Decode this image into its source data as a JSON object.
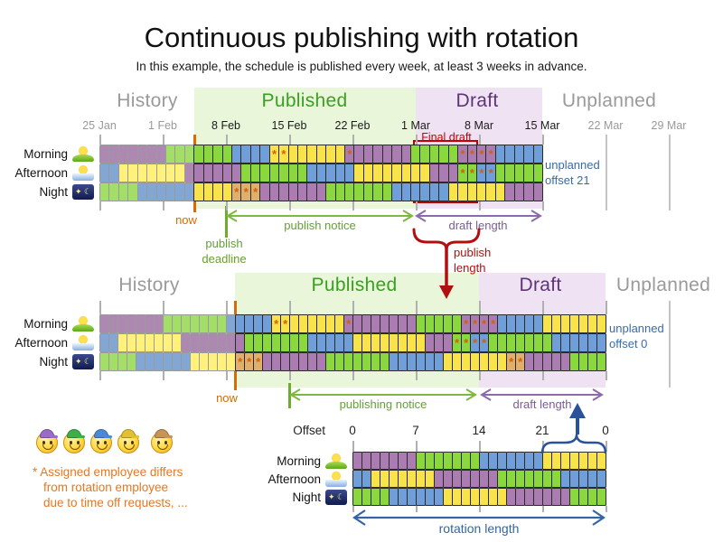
{
  "title": "Continuous publishing with rotation",
  "subtitle": "In this example, the schedule is published every week, at least 3 weeks in advance.",
  "colors": {
    "shifts": {
      "P": "#ab7cb2",
      "G": "#8ad83e",
      "B": "#6f9ed8",
      "Y": "#f8e34a",
      "T": "#e0af6b"
    },
    "published_bg": "#e9f6da",
    "draft_bg": "#efe2f2",
    "now_line": "#d96b00",
    "deadline_line": "#6cae2a",
    "final_draft_red": "#c00000",
    "annotation_blue": "#3a6ba8",
    "employee_caps": [
      "#9b6bc8",
      "#3fae49",
      "#4a8ad4",
      "#e3c030",
      "#c79455"
    ]
  },
  "charts": {
    "top": {
      "section_labels": [
        "History",
        "Published",
        "Draft",
        "Unplanned"
      ],
      "dates": [
        {
          "label": "25 Jan",
          "muted": true
        },
        {
          "label": "1 Feb",
          "muted": true
        },
        {
          "label": "8 Feb",
          "muted": false
        },
        {
          "label": "15 Feb",
          "muted": false
        },
        {
          "label": "22 Feb",
          "muted": false
        },
        {
          "label": "1 Mar",
          "muted": false
        },
        {
          "label": "8 Mar",
          "muted": false
        },
        {
          "label": "15 Mar",
          "muted": false
        },
        {
          "label": "22 Mar",
          "muted": true
        },
        {
          "label": "29 Mar",
          "muted": true
        }
      ],
      "rows": [
        {
          "label": "Morning",
          "icon": "morning",
          "cells": "P7,G7,B4,Y*2,Y6,P*1,P6,G5,P*4,B5",
          "history": 10
        },
        {
          "label": "Afternoon",
          "icon": "afternoon",
          "cells": "B2,Y7,P6,G7,B5,Y8,P3,G*2,B*2,G5",
          "history": 10
        },
        {
          "label": "Night",
          "icon": "night",
          "cells": "G4,B6,Y4,T*3,P7,G7,B6,Y6,P4",
          "history": 10
        }
      ],
      "annotations": {
        "final_draft": "Final draft",
        "now": "now",
        "publish_notice": "publish notice",
        "draft_length": "draft length",
        "publish_deadline_line1": "publish",
        "publish_deadline_line2": "deadline",
        "publish_length_line1": "publish",
        "publish_length_line2": "length",
        "unplanned_line1": "unplanned",
        "unplanned_line2": "offset 21"
      }
    },
    "middle": {
      "section_labels": [
        "History",
        "Published",
        "Draft",
        "Unplanned"
      ],
      "rows": [
        {
          "label": "Morning",
          "icon": "morning",
          "cells": "P7,G7,B5,Y*2,Y6,P*1,P7,G5,P*4,B5,Y7",
          "history": 15
        },
        {
          "label": "Afternoon",
          "icon": "afternoon",
          "cells": "B2,Y7,P7,G7,B5,Y8,P3,G*2,B*2,G7,B6",
          "history": 15
        },
        {
          "label": "Night",
          "icon": "night",
          "cells": "G4,B6,Y5,T*3,P7,G7,B6,Y7,T*2,P5,G4",
          "history": 15
        }
      ],
      "annotations": {
        "now": "now",
        "publishing_notice": "publishing notice",
        "draft_length": "draft length",
        "unplanned_line1": "unplanned",
        "unplanned_line2": "offset 0"
      }
    }
  },
  "rotation": {
    "offset_label": "Offset",
    "offsets": [
      "0",
      "7",
      "14",
      "21",
      "0"
    ],
    "rows": [
      {
        "label": "Morning",
        "icon": "morning",
        "cells": "P7,G7,B7,Y7",
        "history": 0
      },
      {
        "label": "Afternoon",
        "icon": "afternoon",
        "cells": "B2,Y7,P7,G7,B5",
        "history": 0
      },
      {
        "label": "Night",
        "icon": "night",
        "cells": "G4,B6,Y7,P7,G4",
        "history": 0
      }
    ],
    "length_label": "rotation length"
  },
  "footnote": {
    "line1": "* Assigned employee differs",
    "line2": "from rotation employee",
    "line3": "due to time off requests, ..."
  }
}
